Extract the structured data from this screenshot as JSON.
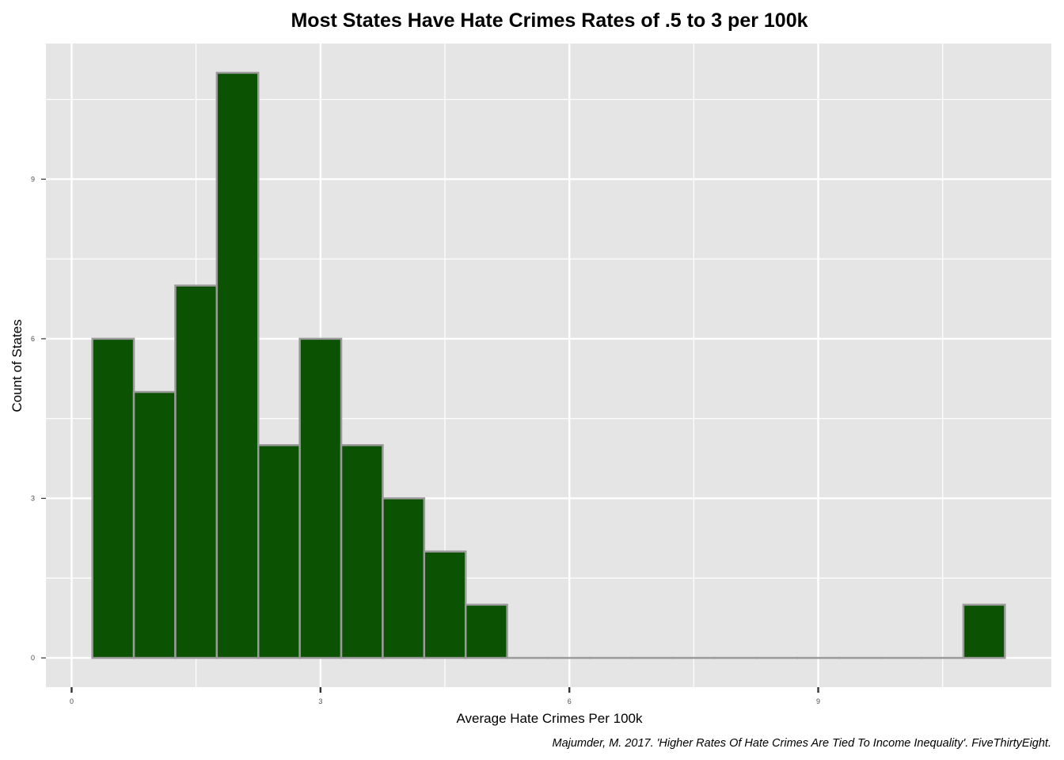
{
  "chart_data": {
    "type": "bar",
    "subtype": "histogram",
    "title": "Most States Have Hate Crimes Rates of .5 to 3 per 100k",
    "xlabel": "Average Hate Crimes Per 100k",
    "ylabel": "Count of States",
    "caption": "Majumder, M. 2017. 'Higher Rates Of Hate Crimes Are Tied To Income Inequality'. FiveThirtyEight.",
    "bin_width": 0.5,
    "bins": [
      {
        "x0": 0.25,
        "x1": 0.75,
        "count": 6
      },
      {
        "x0": 0.75,
        "x1": 1.25,
        "count": 5
      },
      {
        "x0": 1.25,
        "x1": 1.75,
        "count": 7
      },
      {
        "x0": 1.75,
        "x1": 2.25,
        "count": 11
      },
      {
        "x0": 2.25,
        "x1": 2.75,
        "count": 4
      },
      {
        "x0": 2.75,
        "x1": 3.25,
        "count": 6
      },
      {
        "x0": 3.25,
        "x1": 3.75,
        "count": 4
      },
      {
        "x0": 3.75,
        "x1": 4.25,
        "count": 3
      },
      {
        "x0": 4.25,
        "x1": 4.75,
        "count": 2
      },
      {
        "x0": 4.75,
        "x1": 5.25,
        "count": 1
      },
      {
        "x0": 5.25,
        "x1": 5.75,
        "count": 0
      },
      {
        "x0": 5.75,
        "x1": 6.25,
        "count": 0
      },
      {
        "x0": 6.25,
        "x1": 6.75,
        "count": 0
      },
      {
        "x0": 6.75,
        "x1": 7.25,
        "count": 0
      },
      {
        "x0": 7.25,
        "x1": 7.75,
        "count": 0
      },
      {
        "x0": 7.75,
        "x1": 8.25,
        "count": 0
      },
      {
        "x0": 8.25,
        "x1": 8.75,
        "count": 0
      },
      {
        "x0": 8.75,
        "x1": 9.25,
        "count": 0
      },
      {
        "x0": 9.25,
        "x1": 9.75,
        "count": 0
      },
      {
        "x0": 9.75,
        "x1": 10.25,
        "count": 0
      },
      {
        "x0": 10.25,
        "x1": 10.75,
        "count": 0
      },
      {
        "x0": 10.75,
        "x1": 11.25,
        "count": 1
      }
    ],
    "xlim": [
      -0.31,
      11.81
    ],
    "ylim": [
      -0.55,
      11.55
    ],
    "x_ticks": [
      0,
      3,
      6,
      9
    ],
    "x_tick_labels": [
      "0",
      "3",
      "6",
      "9"
    ],
    "y_ticks": [
      0,
      3,
      6,
      9
    ],
    "y_tick_labels": [
      "0",
      "3",
      "6",
      "9"
    ],
    "grid": true,
    "legend": "none",
    "colors": {
      "bar_fill": "#0b5203",
      "bar_outline": "#9a9a9a",
      "panel_background": "#e5e5e5",
      "grid_line": "#ffffff"
    }
  }
}
